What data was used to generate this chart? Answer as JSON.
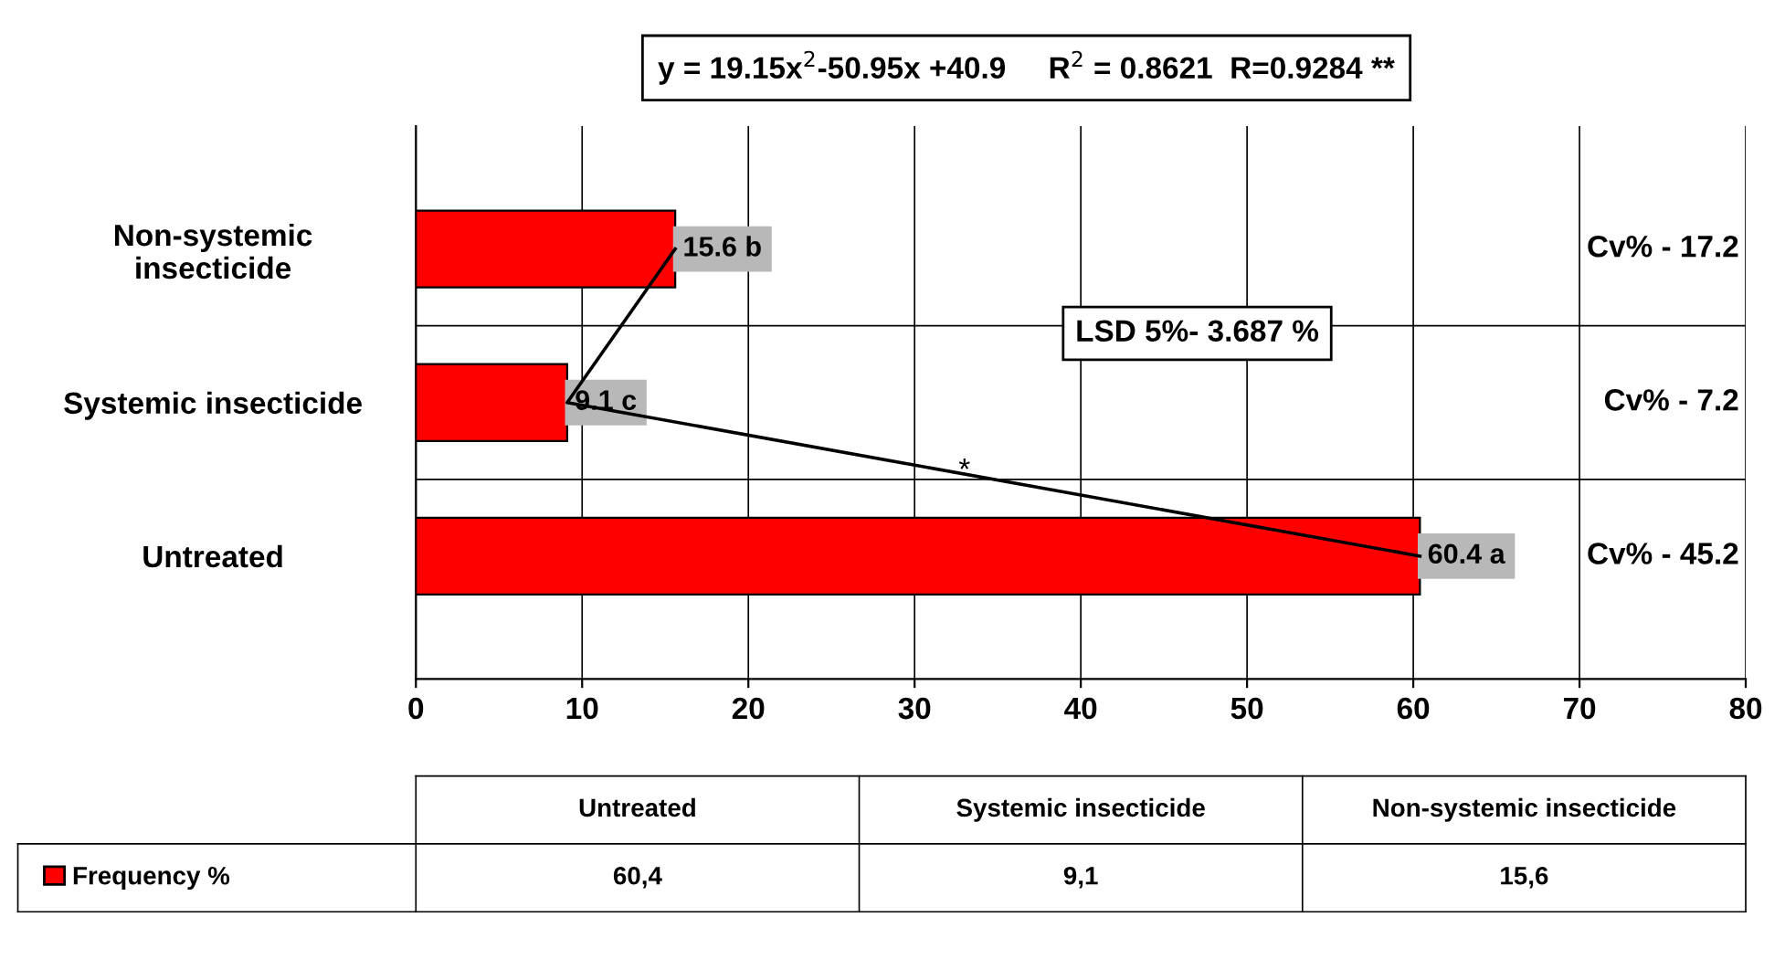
{
  "chart_data": {
    "type": "bar",
    "orientation": "horizontal",
    "categories": [
      "Non-systemic insecticide",
      "Systemic insecticide",
      "Untreated"
    ],
    "series": [
      {
        "name": "Frequency %",
        "color": "#ff0000",
        "values": [
          15.6,
          9.1,
          60.4
        ],
        "value_labels": [
          "15.6 b",
          "9.1 c",
          "60.4 a"
        ]
      },
      {
        "type": "line",
        "color": "#000000",
        "values": [
          15.6,
          9.1,
          60.4
        ]
      }
    ],
    "xlim": [
      0,
      80
    ],
    "xticks": [
      0,
      10,
      20,
      30,
      40,
      50,
      60,
      70,
      80
    ],
    "grid": true,
    "legend": "bottom left",
    "annotations": [
      "y = 19.15x$^{2}$-50.95x +40.9     R$^{2}$ = 0.8621  R=0.9284 **",
      "LSD 5%- 3.687 %",
      "Cv% - 17.2",
      "Cv% - 7.2",
      "Cv% - 45.2",
      "*",
      "60,4",
      "9,1",
      "15,6"
    ]
  }
}
